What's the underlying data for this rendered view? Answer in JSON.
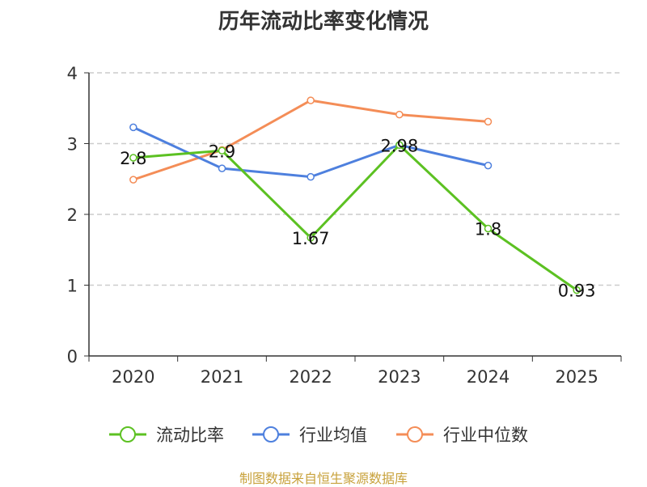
{
  "chart_data": {
    "type": "line",
    "title": "历年流动比率变化情况",
    "categories": [
      "2020",
      "2021",
      "2022",
      "2023",
      "2024",
      "2025"
    ],
    "ylim": [
      0,
      4
    ],
    "yticks": [
      0,
      1,
      2,
      3,
      4
    ],
    "grid": true,
    "legend_position": "bottom",
    "series": [
      {
        "name": "流动比率",
        "color": "#5cc122",
        "values": [
          2.8,
          2.9,
          1.67,
          2.98,
          1.8,
          0.93
        ],
        "labels": [
          "2.8",
          "2.9",
          "1.67",
          "2.98",
          "1.8",
          "0.93"
        ]
      },
      {
        "name": "行业均值",
        "color": "#4e80de",
        "values": [
          3.23,
          2.65,
          2.53,
          2.98,
          2.69,
          null
        ]
      },
      {
        "name": "行业中位数",
        "color": "#f48d57",
        "values": [
          2.49,
          2.91,
          3.61,
          3.41,
          3.31,
          null
        ]
      }
    ]
  },
  "source_text": "制图数据来自恒生聚源数据库"
}
